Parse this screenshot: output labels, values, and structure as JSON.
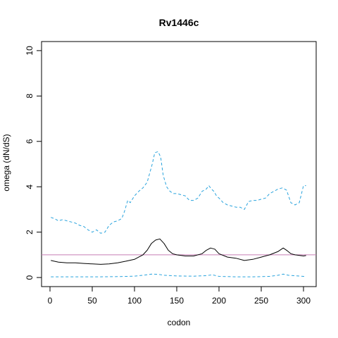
{
  "chart_data": {
    "type": "line",
    "title": "Rv1446c",
    "xlabel": "codon",
    "ylabel": "omega (dN/dS)",
    "xlim": [
      -10,
      315
    ],
    "ylim": [
      -0.4,
      10.4
    ],
    "xticks": [
      0,
      50,
      100,
      150,
      200,
      250,
      300
    ],
    "yticks": [
      0,
      2,
      4,
      6,
      8,
      10
    ],
    "grid": false,
    "reference_line": {
      "y": 1,
      "color": "#c77cb5"
    },
    "series": [
      {
        "style": "solid",
        "color": "#000000",
        "x": [
          1,
          10,
          20,
          30,
          40,
          50,
          60,
          70,
          80,
          90,
          100,
          105,
          110,
          115,
          120,
          125,
          130,
          135,
          140,
          145,
          150,
          160,
          170,
          180,
          185,
          190,
          195,
          200,
          210,
          220,
          230,
          240,
          250,
          260,
          270,
          276,
          280,
          285,
          290,
          300,
          303
        ],
        "y": [
          0.75,
          0.68,
          0.65,
          0.65,
          0.62,
          0.6,
          0.58,
          0.6,
          0.65,
          0.72,
          0.8,
          0.9,
          1.0,
          1.2,
          1.5,
          1.65,
          1.7,
          1.5,
          1.2,
          1.05,
          1.0,
          0.95,
          0.95,
          1.05,
          1.2,
          1.3,
          1.25,
          1.05,
          0.9,
          0.85,
          0.75,
          0.8,
          0.9,
          1.0,
          1.15,
          1.3,
          1.2,
          1.05,
          1.0,
          0.95,
          0.97
        ]
      },
      {
        "style": "dashed",
        "color": "#29a3dd",
        "x": [
          1,
          5,
          10,
          15,
          20,
          25,
          30,
          35,
          40,
          45,
          50,
          55,
          60,
          65,
          70,
          75,
          80,
          85,
          88,
          92,
          95,
          100,
          105,
          110,
          115,
          118,
          121,
          124,
          128,
          131,
          134,
          138,
          142,
          146,
          150,
          155,
          160,
          165,
          170,
          175,
          180,
          185,
          188,
          191,
          194,
          197,
          200,
          205,
          210,
          215,
          220,
          225,
          230,
          235,
          240,
          245,
          250,
          255,
          260,
          265,
          270,
          275,
          280,
          285,
          290,
          295,
          300,
          303
        ],
        "y": [
          2.65,
          2.6,
          2.5,
          2.55,
          2.5,
          2.45,
          2.4,
          2.3,
          2.25,
          2.1,
          2.0,
          2.1,
          1.95,
          2.0,
          2.3,
          2.45,
          2.5,
          2.6,
          2.9,
          3.4,
          3.3,
          3.6,
          3.8,
          3.95,
          4.2,
          4.6,
          5.0,
          5.5,
          5.55,
          5.3,
          4.5,
          4.0,
          3.8,
          3.7,
          3.7,
          3.65,
          3.6,
          3.4,
          3.4,
          3.5,
          3.8,
          3.9,
          4.05,
          3.9,
          3.8,
          3.6,
          3.5,
          3.3,
          3.2,
          3.15,
          3.1,
          3.1,
          3.0,
          3.35,
          3.4,
          3.4,
          3.45,
          3.5,
          3.7,
          3.8,
          3.9,
          3.95,
          3.85,
          3.3,
          3.2,
          3.3,
          4.05,
          4.05
        ]
      },
      {
        "style": "dashed",
        "color": "#29a3dd",
        "x": [
          1,
          20,
          40,
          60,
          80,
          100,
          110,
          120,
          128,
          135,
          150,
          170,
          185,
          192,
          200,
          220,
          240,
          260,
          270,
          276,
          282,
          300,
          303
        ],
        "y": [
          0.03,
          0.03,
          0.03,
          0.03,
          0.04,
          0.06,
          0.1,
          0.15,
          0.14,
          0.1,
          0.07,
          0.06,
          0.08,
          0.12,
          0.05,
          0.03,
          0.03,
          0.05,
          0.1,
          0.15,
          0.1,
          0.05,
          0.04
        ]
      }
    ]
  }
}
